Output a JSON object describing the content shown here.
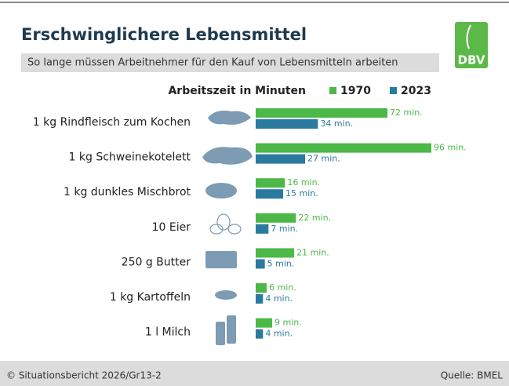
{
  "chart_data": {
    "type": "bar",
    "title": "Erschwinglichere Lebensmittel",
    "subtitle": "So lange müssen Arbeitnehmer für den Kauf von Lebensmitteln arbeiten",
    "axis_label": "Arbeitszeit in Minuten",
    "logo": "DBV",
    "footer_left": "© Situationsbericht 2026/Gr13-2",
    "footer_right": "Quelle: BMEL",
    "categories": [
      "1 kg Rindfleisch zum Kochen",
      "1 kg Schweinekotelett",
      "1 kg dunkles Mischbrot",
      "10 Eier",
      "250 g Butter",
      "1 kg Kartoffeln",
      "1 l Milch"
    ],
    "series": [
      {
        "name": "1970",
        "color": "#4cb848",
        "values": [
          72,
          96,
          16,
          22,
          21,
          6,
          9
        ],
        "value_labels": [
          "72 min.",
          "96 min.",
          "16 min.",
          "22 min.",
          "21 min.",
          "6 min.",
          "9 min."
        ]
      },
      {
        "name": "2023",
        "color": "#2a7aa0",
        "values": [
          34,
          27,
          15,
          7,
          5,
          4,
          4
        ],
        "value_labels": [
          "34 min.",
          "27 min.",
          "15 min.",
          "7 min.",
          "5 min.",
          "4 min.",
          "4 min."
        ]
      }
    ]
  }
}
